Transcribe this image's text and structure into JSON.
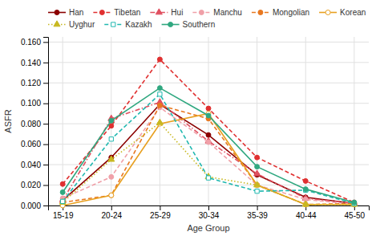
{
  "chart_data": {
    "type": "line",
    "xlabel": "Age Group",
    "ylabel": "ASFR",
    "categories": [
      "15-19",
      "20-24",
      "25-29",
      "30-34",
      "35-39",
      "40-44",
      "45-50"
    ],
    "series": [
      {
        "name": "Han",
        "color": "#8B0000",
        "marker": "circle",
        "line_style": "solid",
        "values": [
          0.005,
          0.047,
          0.099,
          0.069,
          0.03,
          0.008,
          0.002
        ]
      },
      {
        "name": "Tibetan",
        "color": "#e03030",
        "marker": "circle",
        "line_style": "dashed",
        "values": [
          0.021,
          0.078,
          0.143,
          0.095,
          0.047,
          0.024,
          0.003
        ]
      },
      {
        "name": "Hui",
        "color": "#e05060",
        "marker": "triangle",
        "line_style": "dashdot",
        "values": [
          0.005,
          0.085,
          0.101,
          0.063,
          0.031,
          0.007,
          0.002
        ]
      },
      {
        "name": "Manchu",
        "color": "#f0a0a8",
        "marker": "circle",
        "line_style": "dashed",
        "values": [
          0.007,
          0.028,
          0.096,
          0.062,
          0.02,
          0.006,
          0.001
        ]
      },
      {
        "name": "Mongolian",
        "color": "#e87820",
        "marker": "circle",
        "line_style": "dashed",
        "values": [
          0.003,
          0.01,
          0.098,
          0.085,
          0.02,
          0.001,
          0.002
        ]
      },
      {
        "name": "Korean",
        "color": "#e8a020",
        "marker": "open-circle",
        "line_style": "solid",
        "values": [
          0.0,
          0.01,
          0.08,
          0.09,
          0.02,
          0.001,
          0.001
        ]
      },
      {
        "name": "Uyghur",
        "color": "#c8b820",
        "marker": "triangle",
        "line_style": "dotted",
        "values": [
          0.003,
          0.045,
          0.081,
          0.028,
          0.02,
          0.001,
          0.001
        ]
      },
      {
        "name": "Kazakh",
        "color": "#20b8b0",
        "marker": "open-square",
        "line_style": "dashed",
        "values": [
          0.004,
          0.065,
          0.109,
          0.027,
          0.014,
          0.015,
          0.002
        ]
      },
      {
        "name": "Southern",
        "color": "#30a880",
        "marker": "circle",
        "line_style": "solid",
        "values": [
          0.013,
          0.083,
          0.115,
          0.088,
          0.038,
          0.016,
          0.003
        ]
      }
    ],
    "ylim": [
      0,
      0.165
    ],
    "yticks": [
      {
        "value": 0,
        "label": "0.000"
      },
      {
        "value": 0.02,
        "label": "0.020"
      },
      {
        "value": 0.04,
        "label": "0.040"
      },
      {
        "value": 0.06,
        "label": "0.060"
      },
      {
        "value": 0.08,
        "label": "0.080"
      },
      {
        "value": 0.1,
        "label": "0.100"
      },
      {
        "value": 0.12,
        "label": "0.120"
      },
      {
        "value": 0.14,
        "label": "0.140"
      },
      {
        "value": 0.16,
        "label": "0.160"
      }
    ],
    "grid": true,
    "legend": "top"
  }
}
